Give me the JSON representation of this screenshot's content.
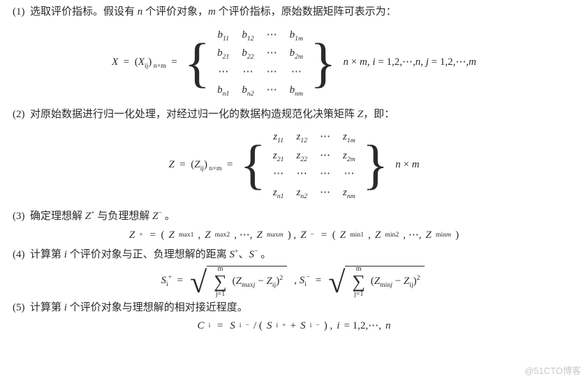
{
  "colors": {
    "text": "#2a2a2a",
    "background": "#ffffff",
    "watermark": "#c9c9c9"
  },
  "typography": {
    "body_font": "SimSun / Times",
    "body_size_pt": 11,
    "math_font": "Times italic"
  },
  "items": [
    {
      "num": "(1)",
      "text": "选取评价指标。假设有 n 个评价对象，m 个评价指标，原始数据矩阵可表示为："
    },
    {
      "num": "(2)",
      "text": "对原始数据进行归一化处理，对经过归一化的数据构造规范化决策矩阵 Z，即："
    },
    {
      "num": "(3)",
      "text": "确定理想解 Z⁺ 与负理想解 Z⁻ 。"
    },
    {
      "num": "(4)",
      "text": "计算第 i 个评价对象与正、负理想解的距离 S⁺、S⁻ 。"
    },
    {
      "num": "(5)",
      "text": "计算第 i 个评价对象与理想解的相对接近程度。"
    }
  ],
  "eq1": {
    "lhs": "X = (X_{ij})_{n×m} =",
    "matrix": {
      "rows": [
        [
          "b_{11}",
          "b_{12}",
          "⋯",
          "b_{1m}"
        ],
        [
          "b_{21}",
          "b_{22}",
          "⋯",
          "b_{2m}"
        ],
        [
          "⋯",
          "⋯",
          "⋯",
          "⋯"
        ],
        [
          "b_{n1}",
          "b_{n2}",
          "⋯",
          "b_{nm}"
        ]
      ]
    },
    "rhs": "n × m, i = 1,2,⋯,n, j = 1,2,⋯,m"
  },
  "eq2": {
    "lhs": "Z = (Z_{ij})_{n×m} =",
    "matrix": {
      "rows": [
        [
          "z_{11}",
          "z_{12}",
          "⋯",
          "z_{1m}"
        ],
        [
          "z_{21}",
          "z_{22}",
          "⋯",
          "z_{2m}"
        ],
        [
          "⋯",
          "⋯",
          "⋯",
          "⋯"
        ],
        [
          "z_{n1}",
          "z_{n2}",
          "⋯",
          "z_{nm}"
        ]
      ]
    },
    "rhs": "n × m"
  },
  "eq3": {
    "text": "Z⁺ = (Z_{max1}, Z_{max2}, ⋯, Z_{maxm}) , Z⁻ = (Z_{min1}, Z_{min2}, ⋯, Z_{minm})"
  },
  "eq4": {
    "Splus_lhs": "S_{i}^{+} =",
    "Sminus_lhs": ", S_{i}^{-} =",
    "sum_upper": "m",
    "sum_lower": "j=1",
    "term_plus": "(Z_{maxj} − Z_{ij})²",
    "term_minus": "(Z_{minj} − Z_{ij})²"
  },
  "eq5": {
    "text": "C_{i} = S_{i}^{-} / (S_{i}^{+} + S_{i}^{-}) , i = 1,2,⋯,n"
  },
  "watermark": "@51CTO博客"
}
